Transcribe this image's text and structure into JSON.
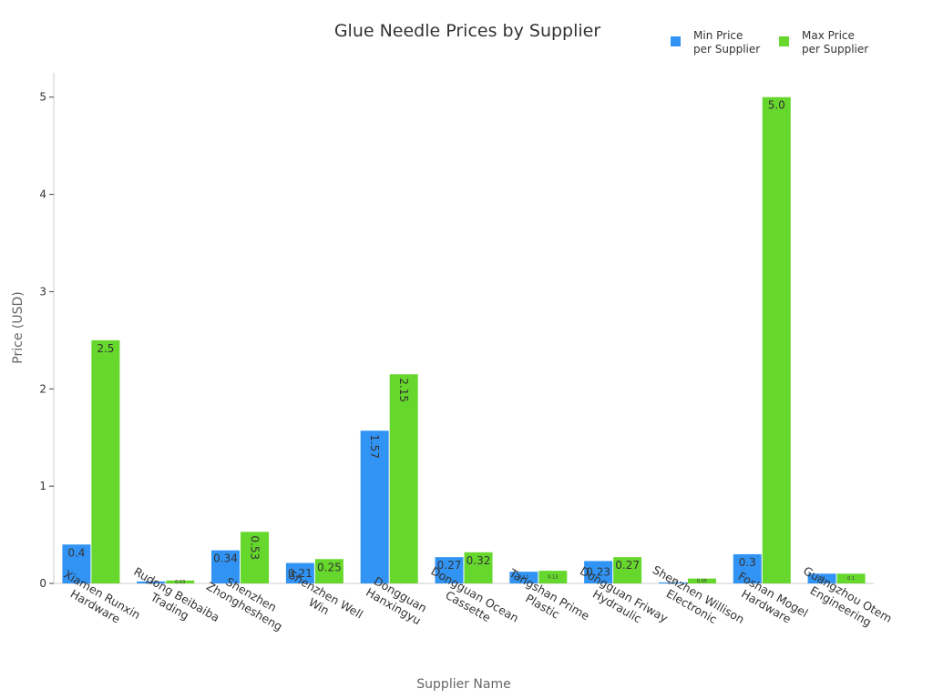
{
  "chart_data": {
    "type": "bar",
    "title": "Glue Needle Prices by Supplier",
    "xlabel": "Supplier Name",
    "ylabel": "Price (USD)",
    "ylim": [
      0,
      5.25
    ],
    "yticks": [
      0,
      1,
      2,
      3,
      4,
      5
    ],
    "grid": false,
    "legend_position": "top-right",
    "categories": [
      [
        "Xiamen Runxin",
        "Hardware"
      ],
      [
        "Rudong Beibaiba",
        "Trading"
      ],
      [
        "Shenzhen",
        "Zhonghesheng"
      ],
      [
        "Shenzhen Well",
        "Win"
      ],
      [
        "Dongguan",
        "Hanxingyu"
      ],
      [
        "Dongguan Ocean",
        "Cassette"
      ],
      [
        "Tangshan Prime",
        "Plastic"
      ],
      [
        "Dongguan Friway",
        "Hydraulic"
      ],
      [
        "Shenzhen Willison",
        "Electronic"
      ],
      [
        "Foshan Mogel",
        "Hardware"
      ],
      [
        "Guangzhou Otem",
        "Engineering"
      ]
    ],
    "series": [
      {
        "name": [
          "Min Price",
          "per Supplier"
        ],
        "color": "#3194f5",
        "values": [
          0.4,
          0.02,
          0.34,
          0.21,
          1.57,
          0.27,
          0.12,
          0.23,
          0.01,
          0.3,
          0.1
        ],
        "labels": [
          "0.4",
          "0.02",
          "0.34",
          "0.21",
          "1.57",
          "0.27",
          "0.12",
          "0.23",
          "0.01",
          "0.3",
          "0.1"
        ]
      },
      {
        "name": [
          "Max Price",
          "per Supplier"
        ],
        "color": "#66d72c",
        "values": [
          2.5,
          0.03,
          0.53,
          0.25,
          2.15,
          0.32,
          0.13,
          0.27,
          0.05,
          5.0,
          0.1
        ],
        "labels": [
          "2.5",
          "0.03",
          "0.53",
          "0.25",
          "2.15",
          "0.32",
          "0.13",
          "0.27",
          "0.05",
          "5.0",
          "0.1"
        ]
      }
    ]
  }
}
